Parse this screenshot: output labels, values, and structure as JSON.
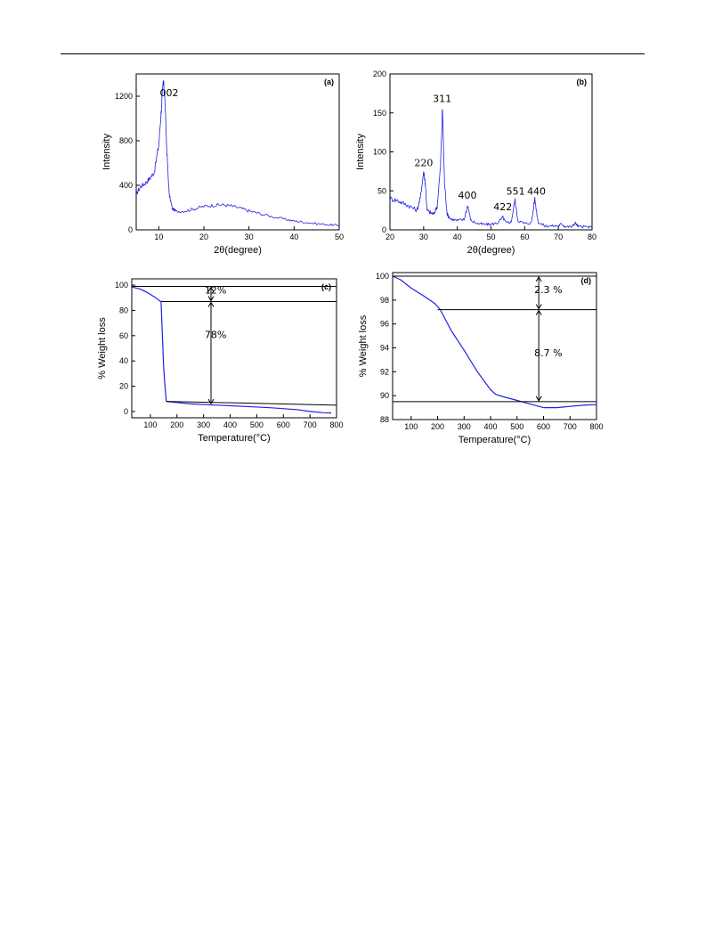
{
  "chart_data": [
    {
      "id": "a",
      "type": "line",
      "panel_label": "(a)",
      "xlabel": "2θ(degree)",
      "ylabel": "Intensity",
      "xlim": [
        5,
        50
      ],
      "ylim": [
        0,
        1400
      ],
      "xticks": [
        10,
        20,
        30,
        40,
        50
      ],
      "yticks": [
        0,
        400,
        800,
        1200
      ],
      "series": [
        {
          "color": "#1f1fe6",
          "x": [
            5,
            6,
            7,
            8,
            9,
            10,
            10.5,
            11,
            11.3,
            11.8,
            12.3,
            13,
            14,
            16,
            18,
            20,
            22,
            24,
            26,
            28,
            30,
            32,
            35,
            38,
            40,
            42,
            45,
            48,
            50
          ],
          "y": [
            320,
            390,
            420,
            460,
            520,
            760,
            1050,
            1320,
            1220,
            700,
            320,
            190,
            165,
            170,
            190,
            210,
            220,
            225,
            215,
            195,
            170,
            150,
            120,
            95,
            80,
            70,
            55,
            45,
            40
          ]
        }
      ],
      "annotations": [
        {
          "text": "002",
          "x": 12.3,
          "y": 1200
        }
      ]
    },
    {
      "id": "b",
      "type": "line",
      "panel_label": "(b)",
      "xlabel": "2θ(degree)",
      "ylabel": "Intensity",
      "xlim": [
        20,
        80
      ],
      "ylim": [
        0,
        200
      ],
      "xticks": [
        20,
        30,
        40,
        50,
        60,
        70,
        80
      ],
      "yticks": [
        0,
        50,
        100,
        150,
        200
      ],
      "series": [
        {
          "color": "#1f1fe6",
          "x": [
            20,
            22,
            24,
            26,
            28,
            29,
            30,
            30.5,
            31,
            32,
            33,
            34,
            35,
            35.6,
            36.2,
            37,
            38,
            40,
            42,
            43.1,
            44,
            46,
            48,
            50,
            52,
            53.5,
            54.5,
            56,
            57.1,
            58,
            60,
            62,
            63,
            64,
            66,
            68,
            70,
            71,
            72,
            74,
            75,
            76,
            78,
            80
          ],
          "y": [
            40,
            38,
            34,
            30,
            25,
            40,
            75,
            60,
            25,
            22,
            20,
            30,
            80,
            155,
            60,
            20,
            14,
            12,
            13,
            32,
            12,
            8,
            7,
            7,
            9,
            16,
            9,
            10,
            38,
            12,
            8,
            9,
            40,
            10,
            5,
            5,
            5,
            8,
            4,
            4,
            9,
            4,
            4,
            3
          ]
        }
      ],
      "annotations": [
        {
          "text": "220",
          "x": 30,
          "y": 82
        },
        {
          "text": "311",
          "x": 35.5,
          "y": 164
        },
        {
          "text": "400",
          "x": 43,
          "y": 40
        },
        {
          "text": "422",
          "x": 53.5,
          "y": 25
        },
        {
          "text": "551",
          "x": 57.3,
          "y": 45
        },
        {
          "text": "440",
          "x": 63.5,
          "y": 45
        }
      ]
    },
    {
      "id": "c",
      "type": "line",
      "panel_label": "(c)",
      "xlabel": "Temperature(°C)",
      "ylabel": "% Weight loss",
      "xlim": [
        30,
        800
      ],
      "ylim": [
        -5,
        105
      ],
      "xticks": [
        100,
        200,
        300,
        400,
        500,
        600,
        700,
        800
      ],
      "yticks": [
        0,
        20,
        40,
        60,
        80,
        100
      ],
      "series": [
        {
          "color": "#1f1fe6",
          "x": [
            30,
            60,
            90,
            120,
            135,
            140,
            145,
            150,
            155,
            160,
            180,
            250,
            350,
            450,
            550,
            650,
            700,
            750,
            780
          ],
          "y": [
            98.5,
            97,
            94,
            90,
            87.5,
            87,
            60,
            35,
            20,
            8,
            7.5,
            6,
            5,
            4,
            3,
            1.5,
            0,
            -1,
            -1.2
          ]
        }
      ],
      "annotations": [
        {
          "text": "12%",
          "x": 345,
          "y": 93.5
        },
        {
          "text": "78%",
          "x": 345,
          "y": 58
        }
      ]
    },
    {
      "id": "d",
      "type": "line",
      "panel_label": "(d)",
      "xlabel": "Temperature(°C)",
      "ylabel": "% Weight loss",
      "xlim": [
        30,
        800
      ],
      "ylim": [
        88,
        100.3
      ],
      "xticks": [
        100,
        200,
        300,
        400,
        500,
        600,
        700,
        800
      ],
      "yticks": [
        88,
        90,
        92,
        94,
        96,
        98,
        100
      ],
      "series": [
        {
          "color": "#1f1fe6",
          "x": [
            30,
            60,
            100,
            150,
            190,
            210,
            250,
            300,
            350,
            400,
            420,
            450,
            500,
            550,
            600,
            650,
            700,
            750,
            800
          ],
          "y": [
            100,
            99.7,
            99,
            98.3,
            97.7,
            97.2,
            95.5,
            93.8,
            92,
            90.5,
            90.1,
            89.9,
            89.6,
            89.3,
            89.0,
            89.0,
            89.1,
            89.2,
            89.25
          ]
        }
      ],
      "annotations": [
        {
          "text": "2.3 %",
          "x": 618,
          "y": 98.6
        },
        {
          "text": "8.7 %",
          "x": 618,
          "y": 93.3
        }
      ]
    }
  ]
}
